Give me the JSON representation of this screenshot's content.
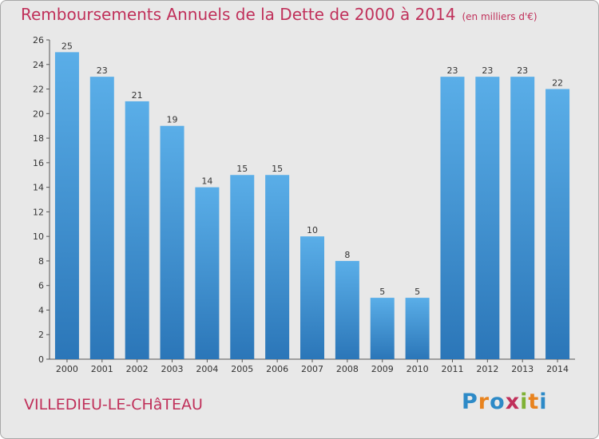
{
  "title": "Remboursements Annuels de la Dette de 2000 à 2014",
  "unit": "(en milliers d'€)",
  "commune": "VILLEDIEU-LE-CHâTEAU",
  "logo": {
    "text": "Proxiti",
    "letters": [
      "P",
      "r",
      "o",
      "x",
      "i",
      "t",
      "i"
    ],
    "colors": [
      "#2d8ac7",
      "#e8831e",
      "#2d8ac7",
      "#c0305a",
      "#7fb235",
      "#e8831e",
      "#2d8ac7"
    ]
  },
  "colors": {
    "bar_light": "#5aaee8",
    "bar_dark": "#2b76b8",
    "title": "#c0305a",
    "background": "#e8e8e8"
  },
  "chart_data": {
    "type": "bar",
    "categories": [
      "2000",
      "2001",
      "2002",
      "2003",
      "2004",
      "2005",
      "2006",
      "2007",
      "2008",
      "2009",
      "2010",
      "2011",
      "2012",
      "2013",
      "2014"
    ],
    "values": [
      25,
      23,
      21,
      19,
      14,
      15,
      15,
      10,
      8,
      5,
      5,
      23,
      23,
      23,
      22
    ],
    "ylim": [
      0,
      26
    ],
    "yticks": [
      0,
      2,
      4,
      6,
      8,
      10,
      12,
      14,
      16,
      18,
      20,
      22,
      24,
      26
    ],
    "title": "Remboursements Annuels de la Dette de 2000 à 2014",
    "xlabel": "",
    "ylabel": "",
    "grid": false
  }
}
